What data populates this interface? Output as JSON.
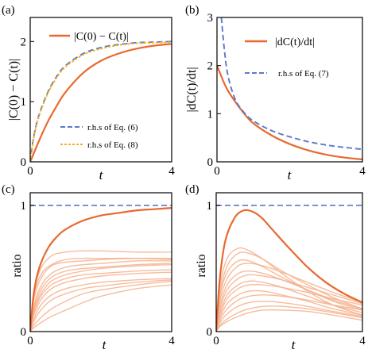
{
  "chart_data": [
    {
      "panel": "(a)",
      "type": "line",
      "xlabel": "t",
      "ylabel": "|C(0) − C(t)|",
      "xlim": [
        0,
        4
      ],
      "ylim": [
        0,
        2.4
      ],
      "xticks": [
        "0",
        "4"
      ],
      "yticks": [
        "0",
        "1",
        "2"
      ],
      "legend": "top-right and bottom-right",
      "series": [
        {
          "name": "|C(0) − C(t)|",
          "style": "solid",
          "color": "#e8692f",
          "x": [
            0,
            0.25,
            0.5,
            0.75,
            1,
            1.5,
            2,
            2.5,
            3,
            3.5,
            4
          ],
          "y": [
            0,
            0.35,
            0.67,
            0.93,
            1.16,
            1.48,
            1.68,
            1.8,
            1.88,
            1.93,
            1.96
          ]
        },
        {
          "name": "r.h.s of Eq. (6)",
          "style": "dashed",
          "color": "#5b79c9",
          "x": [
            0,
            0.1,
            0.25,
            0.5,
            0.75,
            1,
            1.5,
            2,
            2.5,
            3,
            3.5,
            4
          ],
          "y": [
            0,
            0.42,
            0.78,
            1.16,
            1.42,
            1.6,
            1.8,
            1.9,
            1.95,
            1.98,
            1.99,
            2.0
          ]
        },
        {
          "name": "r.h.s of Eq. (8)",
          "style": "dotted",
          "color": "#f2b21f",
          "x": [
            0,
            0.1,
            0.25,
            0.5,
            0.75,
            1,
            1.5,
            2,
            2.5,
            3,
            3.5,
            4
          ],
          "y": [
            0,
            0.4,
            0.76,
            1.14,
            1.4,
            1.58,
            1.78,
            1.88,
            1.94,
            1.97,
            1.98,
            1.99
          ]
        }
      ]
    },
    {
      "panel": "(b)",
      "type": "line",
      "xlabel": "t",
      "ylabel": "|dC(t)/dt|",
      "xlim": [
        0,
        4
      ],
      "ylim": [
        0,
        3
      ],
      "xticks": [
        "0",
        "4"
      ],
      "yticks": [
        "0",
        "1",
        "2",
        "3"
      ],
      "legend": "top-right",
      "series": [
        {
          "name": "|dC(t)/dt|",
          "style": "solid",
          "color": "#e8692f",
          "x": [
            0,
            0.25,
            0.5,
            0.75,
            1,
            1.5,
            2,
            2.5,
            3,
            3.5,
            4
          ],
          "y": [
            2.0,
            1.55,
            1.25,
            1.0,
            0.8,
            0.55,
            0.37,
            0.24,
            0.15,
            0.09,
            0.05
          ]
        },
        {
          "name": "r.h.s of Eq. (7)",
          "style": "dashed",
          "color": "#5b79c9",
          "x": [
            0.12,
            0.2,
            0.3,
            0.5,
            0.75,
            1,
            1.5,
            2,
            2.5,
            3,
            3.5,
            4
          ],
          "y": [
            3.0,
            2.35,
            1.8,
            1.3,
            1.02,
            0.85,
            0.65,
            0.52,
            0.42,
            0.35,
            0.3,
            0.26
          ]
        }
      ]
    },
    {
      "panel": "(c)",
      "type": "line",
      "xlabel": "t",
      "ylabel": "ratio",
      "xlim": [
        0,
        4
      ],
      "ylim": [
        0,
        1.1
      ],
      "xticks": [
        "0",
        "4"
      ],
      "yticks": [
        "0",
        "1"
      ],
      "reference": {
        "y": 1,
        "style": "dashed",
        "color": "#5b79c9"
      },
      "main": {
        "style": "solid",
        "color": "#e8692f",
        "x": [
          0,
          0.1,
          0.25,
          0.5,
          0.75,
          1,
          1.5,
          2,
          2.5,
          3,
          3.5,
          4
        ],
        "y": [
          0,
          0.3,
          0.5,
          0.66,
          0.75,
          0.81,
          0.88,
          0.92,
          0.94,
          0.96,
          0.97,
          0.98
        ]
      },
      "light_series": [
        {
          "x": [
            0,
            0.1,
            0.3,
            0.6,
            1,
            1.5,
            2,
            3,
            4
          ],
          "y": [
            0,
            0.3,
            0.5,
            0.6,
            0.63,
            0.64,
            0.64,
            0.63,
            0.63
          ]
        },
        {
          "x": [
            0,
            0.1,
            0.3,
            0.6,
            1,
            1.5,
            2,
            3,
            4
          ],
          "y": [
            0,
            0.28,
            0.45,
            0.53,
            0.57,
            0.58,
            0.58,
            0.58,
            0.57
          ]
        },
        {
          "x": [
            0,
            0.1,
            0.3,
            0.6,
            1,
            1.5,
            2,
            3,
            4
          ],
          "y": [
            0,
            0.25,
            0.42,
            0.52,
            0.55,
            0.56,
            0.57,
            0.58,
            0.58
          ]
        },
        {
          "x": [
            0,
            0.1,
            0.3,
            0.6,
            1,
            1.5,
            2,
            3,
            4
          ],
          "y": [
            0,
            0.2,
            0.36,
            0.46,
            0.51,
            0.53,
            0.54,
            0.56,
            0.56
          ]
        },
        {
          "x": [
            0,
            0.1,
            0.3,
            0.6,
            1,
            1.5,
            2,
            3,
            4
          ],
          "y": [
            0,
            0.18,
            0.33,
            0.43,
            0.48,
            0.5,
            0.51,
            0.53,
            0.54
          ]
        },
        {
          "x": [
            0,
            0.1,
            0.3,
            0.6,
            1,
            1.5,
            2,
            3,
            4
          ],
          "y": [
            0,
            0.16,
            0.3,
            0.4,
            0.45,
            0.48,
            0.5,
            0.52,
            0.53
          ]
        },
        {
          "x": [
            0,
            0.1,
            0.3,
            0.6,
            1,
            1.5,
            2,
            3,
            4
          ],
          "y": [
            0,
            0.15,
            0.28,
            0.37,
            0.42,
            0.45,
            0.46,
            0.48,
            0.49
          ]
        },
        {
          "x": [
            0,
            0.1,
            0.3,
            0.6,
            1,
            1.5,
            2,
            3,
            4
          ],
          "y": [
            0,
            0.13,
            0.25,
            0.34,
            0.39,
            0.42,
            0.44,
            0.46,
            0.47
          ]
        },
        {
          "x": [
            0,
            0.1,
            0.3,
            0.6,
            1,
            1.5,
            2,
            3,
            4
          ],
          "y": [
            0,
            0.1,
            0.21,
            0.29,
            0.34,
            0.37,
            0.39,
            0.41,
            0.42
          ]
        },
        {
          "x": [
            0,
            0.1,
            0.3,
            0.6,
            1,
            1.5,
            2,
            3,
            4
          ],
          "y": [
            0,
            0.08,
            0.17,
            0.25,
            0.3,
            0.34,
            0.36,
            0.39,
            0.41
          ]
        },
        {
          "x": [
            0,
            0.1,
            0.3,
            0.6,
            1,
            1.5,
            2,
            3,
            4
          ],
          "y": [
            0,
            0.05,
            0.11,
            0.18,
            0.24,
            0.3,
            0.33,
            0.37,
            0.4
          ]
        },
        {
          "x": [
            0,
            0.1,
            0.3,
            0.6,
            1,
            1.5,
            2,
            3,
            4
          ],
          "y": [
            0,
            0.03,
            0.07,
            0.12,
            0.17,
            0.23,
            0.28,
            0.34,
            0.37
          ]
        }
      ]
    },
    {
      "panel": "(d)",
      "type": "line",
      "xlabel": "t",
      "ylabel": "ratio",
      "xlim": [
        0,
        4
      ],
      "ylim": [
        0,
        1.1
      ],
      "xticks": [
        "0",
        "4"
      ],
      "yticks": [
        "0",
        "1"
      ],
      "reference": {
        "y": 1,
        "style": "dashed",
        "color": "#5b79c9"
      },
      "main": {
        "style": "solid",
        "color": "#e8692f",
        "x": [
          0,
          0.1,
          0.25,
          0.5,
          0.75,
          1,
          1.25,
          1.5,
          2,
          2.5,
          3,
          3.5,
          4
        ],
        "y": [
          0,
          0.42,
          0.72,
          0.9,
          0.96,
          0.95,
          0.9,
          0.82,
          0.66,
          0.51,
          0.39,
          0.3,
          0.23
        ]
      },
      "light_series": [
        {
          "x": [
            0,
            0.1,
            0.3,
            0.6,
            0.9,
            1.3,
            1.8,
            2.5,
            3.2,
            4
          ],
          "y": [
            0,
            0.35,
            0.58,
            0.66,
            0.64,
            0.57,
            0.46,
            0.32,
            0.21,
            0.13
          ]
        },
        {
          "x": [
            0,
            0.1,
            0.3,
            0.6,
            0.9,
            1.3,
            1.8,
            2.5,
            3.2,
            4
          ],
          "y": [
            0,
            0.3,
            0.52,
            0.62,
            0.62,
            0.57,
            0.48,
            0.37,
            0.27,
            0.18
          ]
        },
        {
          "x": [
            0,
            0.1,
            0.3,
            0.6,
            0.9,
            1.3,
            1.8,
            2.5,
            3.2,
            4
          ],
          "y": [
            0,
            0.28,
            0.47,
            0.56,
            0.56,
            0.51,
            0.43,
            0.33,
            0.24,
            0.17
          ]
        },
        {
          "x": [
            0,
            0.1,
            0.3,
            0.6,
            0.9,
            1.3,
            1.8,
            2.5,
            3.2,
            4
          ],
          "y": [
            0,
            0.24,
            0.42,
            0.52,
            0.54,
            0.52,
            0.47,
            0.39,
            0.31,
            0.23
          ]
        },
        {
          "x": [
            0,
            0.1,
            0.3,
            0.6,
            0.9,
            1.3,
            1.8,
            2.5,
            3.2,
            4
          ],
          "y": [
            0,
            0.2,
            0.37,
            0.46,
            0.48,
            0.46,
            0.41,
            0.33,
            0.25,
            0.18
          ]
        },
        {
          "x": [
            0,
            0.1,
            0.3,
            0.6,
            0.9,
            1.3,
            1.8,
            2.5,
            3.2,
            4
          ],
          "y": [
            0,
            0.18,
            0.33,
            0.42,
            0.45,
            0.44,
            0.41,
            0.35,
            0.29,
            0.22
          ]
        },
        {
          "x": [
            0,
            0.1,
            0.3,
            0.6,
            0.9,
            1.3,
            1.8,
            2.5,
            3.2,
            4
          ],
          "y": [
            0,
            0.15,
            0.29,
            0.37,
            0.4,
            0.39,
            0.35,
            0.28,
            0.21,
            0.15
          ]
        },
        {
          "x": [
            0,
            0.1,
            0.3,
            0.6,
            0.9,
            1.3,
            1.8,
            2.5,
            3.2,
            4
          ],
          "y": [
            0,
            0.13,
            0.26,
            0.34,
            0.37,
            0.37,
            0.35,
            0.31,
            0.26,
            0.21
          ]
        },
        {
          "x": [
            0,
            0.1,
            0.3,
            0.6,
            0.9,
            1.3,
            1.8,
            2.5,
            3.2,
            4
          ],
          "y": [
            0,
            0.11,
            0.22,
            0.29,
            0.32,
            0.32,
            0.29,
            0.24,
            0.18,
            0.13
          ]
        },
        {
          "x": [
            0,
            0.1,
            0.3,
            0.6,
            0.9,
            1.3,
            1.8,
            2.5,
            3.2,
            4
          ],
          "y": [
            0,
            0.09,
            0.18,
            0.25,
            0.28,
            0.29,
            0.28,
            0.25,
            0.21,
            0.17
          ]
        },
        {
          "x": [
            0,
            0.1,
            0.3,
            0.6,
            0.9,
            1.3,
            1.8,
            2.5,
            3.2,
            4
          ],
          "y": [
            0,
            0.07,
            0.14,
            0.2,
            0.23,
            0.24,
            0.23,
            0.2,
            0.16,
            0.12
          ]
        },
        {
          "x": [
            0,
            0.1,
            0.3,
            0.6,
            0.9,
            1.3,
            1.8,
            2.5,
            3.2,
            4
          ],
          "y": [
            0,
            0.05,
            0.1,
            0.15,
            0.18,
            0.2,
            0.2,
            0.18,
            0.15,
            0.11
          ]
        },
        {
          "x": [
            0,
            0.1,
            0.3,
            0.6,
            0.9,
            1.3,
            1.8,
            2.5,
            3.2,
            4
          ],
          "y": [
            0,
            0.04,
            0.08,
            0.12,
            0.15,
            0.17,
            0.17,
            0.16,
            0.13,
            0.09
          ]
        }
      ]
    }
  ]
}
